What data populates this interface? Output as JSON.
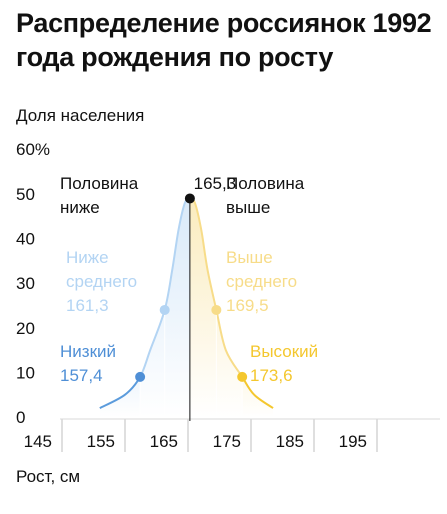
{
  "title": "Распределение россиянок 1992 года рождения по росту",
  "chart_data": {
    "type": "area",
    "title": "Распределение россиянок 1992 года рождения по росту",
    "ylabel": "Доля населения",
    "y_top_label": "60%",
    "xlabel": "Рост, см",
    "xlim": [
      140,
      195
    ],
    "ylim": [
      0,
      60
    ],
    "x_ticks": [
      145,
      155,
      165,
      175,
      185,
      195
    ],
    "y_ticks": [
      0,
      10,
      20,
      30,
      40,
      50
    ],
    "curve": {
      "x": [
        151,
        155,
        157.4,
        159,
        161.3,
        162.5,
        163.5,
        164.5,
        165.3,
        166.1,
        167.1,
        168.1,
        169.5,
        171,
        173.6,
        175.5,
        178.5
      ],
      "y": [
        2,
        5,
        9,
        15,
        24,
        33,
        42,
        48,
        49,
        48,
        42,
        33,
        24,
        15,
        9,
        5,
        2
      ]
    },
    "median": {
      "x": 165.3,
      "y": 49,
      "label": "165,3",
      "left_label": [
        "Половина",
        "ниже"
      ],
      "right_label": [
        "Половина",
        "выше"
      ]
    },
    "markers": [
      {
        "x": 157.4,
        "y": 9,
        "label": [
          "Низкий",
          "157,4"
        ],
        "side": "left",
        "color": "#4f8fd6"
      },
      {
        "x": 161.3,
        "y": 24,
        "label": [
          "Ниже",
          "среднего",
          "161,3"
        ],
        "side": "left",
        "color": "#b3d4f3"
      },
      {
        "x": 169.5,
        "y": 24,
        "label": [
          "Выше",
          "среднего",
          "169,5"
        ],
        "side": "right",
        "color": "#f7dc89"
      },
      {
        "x": 173.6,
        "y": 9,
        "label": [
          "Высокий",
          "173,6"
        ],
        "side": "right",
        "color": "#f4c72e"
      }
    ],
    "colors": {
      "left": "#5b9bdc",
      "left_light": "#b3d4f3",
      "right": "#f4c72e",
      "right_light": "#f7dc89",
      "median": "#111111",
      "grid": "#bfbfbf"
    }
  }
}
